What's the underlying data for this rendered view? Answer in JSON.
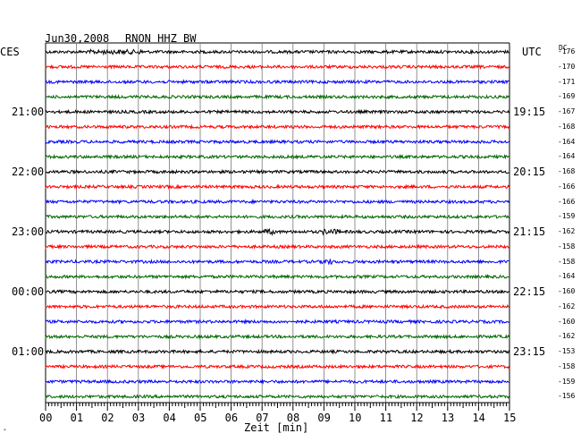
{
  "header": {
    "date": "Jun30,2008",
    "station": "RNON HHZ BW",
    "left_zone": "CES",
    "right_zone": "UTC",
    "dc_label": "DC"
  },
  "x_axis": {
    "label": "Zeit [min]",
    "ticks": [
      "00",
      "01",
      "02",
      "03",
      "04",
      "05",
      "06",
      "07",
      "08",
      "09",
      "10",
      "11",
      "12",
      "13",
      "14",
      "15"
    ]
  },
  "left_time_labels": [
    "21:00",
    "22:00",
    "23:00",
    "00:00",
    "01:00"
  ],
  "right_time_labels": [
    "19:15",
    "20:15",
    "21:15",
    "22:15",
    "23:15"
  ],
  "dc_values": [
    "-176",
    "-170",
    "-171",
    "-169",
    "-167",
    "-168",
    "-164",
    "-164",
    "-168",
    "-166",
    "-166",
    "-159",
    "-162",
    "-158",
    "-158",
    "-164",
    "-160",
    "-162",
    "-160",
    "-162",
    "-153",
    "-158",
    "-159",
    "-156"
  ],
  "trace_colors": [
    "#000000",
    "#ff0000",
    "#0000ff",
    "#006600"
  ],
  "footer_mark": "ˆ"
}
